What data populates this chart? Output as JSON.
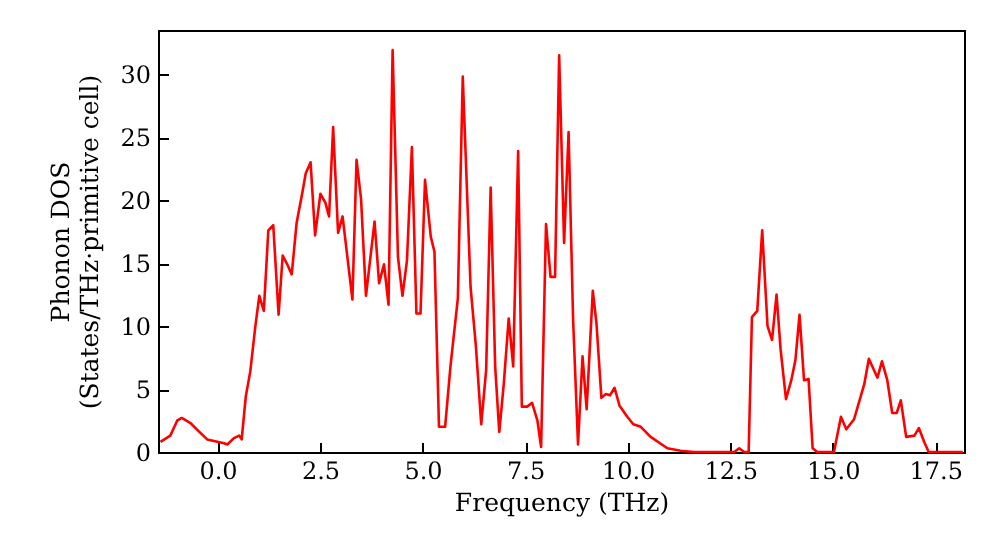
{
  "chart_data": {
    "type": "line",
    "xlabel": "Frequency (THz)",
    "ylabel": "Phonon DOS\n(States/THz·primitive cell)",
    "x": [
      -1.39,
      -1.15,
      -0.98,
      -0.87,
      -0.66,
      -0.41,
      -0.25,
      0.16,
      0.24,
      0.4,
      0.53,
      0.59,
      0.69,
      0.8,
      0.92,
      1.02,
      1.13,
      1.24,
      1.36,
      1.49,
      1.59,
      1.7,
      1.81,
      1.93,
      2.07,
      2.15,
      2.27,
      2.38,
      2.51,
      2.63,
      2.72,
      2.82,
      2.94,
      3.05,
      3.29,
      3.39,
      3.5,
      3.62,
      3.83,
      3.94,
      4.06,
      4.17,
      4.27,
      4.4,
      4.51,
      4.62,
      4.74,
      4.85,
      4.95,
      5.06,
      5.2,
      5.29,
      5.4,
      5.55,
      5.68,
      5.86,
      5.98,
      6.17,
      6.3,
      6.43,
      6.55,
      6.66,
      6.77,
      6.87,
      6.98,
      7.1,
      7.21,
      7.33,
      7.42,
      7.55,
      7.67,
      7.8,
      7.89,
      8.01,
      8.12,
      8.23,
      8.33,
      8.45,
      8.56,
      8.67,
      8.79,
      8.9,
      9.0,
      9.15,
      9.24,
      9.36,
      9.47,
      9.57,
      9.68,
      9.8,
      9.99,
      10.14,
      10.32,
      10.56,
      10.97,
      11.29,
      11.62,
      12.6,
      12.72,
      12.84,
      12.95,
      13.03,
      13.16,
      13.28,
      13.41,
      13.52,
      13.63,
      13.73,
      13.86,
      13.99,
      14.09,
      14.19,
      14.3,
      14.41,
      14.51,
      14.62,
      15.03,
      15.2,
      15.33,
      15.52,
      15.68,
      15.77,
      15.88,
      16.09,
      16.2,
      16.33,
      16.45,
      16.56,
      16.66,
      16.79,
      16.99,
      17.1,
      17.23,
      17.34,
      18.17
    ],
    "series": [
      {
        "color": "#ff0000",
        "values": [
          0.8,
          1.3,
          2.5,
          2.7,
          2.3,
          1.5,
          1.0,
          0.7,
          0.6,
          1.1,
          1.3,
          1.0,
          4.4,
          6.4,
          9.9,
          12.4,
          11.2,
          17.6,
          18.0,
          10.9,
          15.6,
          14.9,
          14.1,
          18.2,
          20.6,
          22.1,
          23.0,
          17.2,
          20.5,
          19.8,
          18.7,
          25.8,
          17.4,
          18.7,
          12.1,
          23.2,
          20.1,
          12.4,
          18.3,
          13.4,
          14.9,
          11.7,
          31.9,
          15.5,
          12.4,
          15.2,
          24.2,
          11.0,
          11.0,
          21.6,
          17.1,
          15.9,
          2.0,
          2.0,
          6.8,
          12.2,
          29.8,
          13.1,
          8.4,
          2.2,
          6.5,
          21.0,
          6.8,
          1.6,
          5.4,
          10.6,
          6.8,
          23.9,
          3.6,
          3.6,
          3.9,
          2.5,
          0.4,
          18.1,
          13.9,
          13.9,
          31.5,
          16.6,
          25.4,
          10.5,
          0.6,
          7.6,
          3.4,
          12.8,
          10.2,
          4.3,
          4.6,
          4.5,
          5.1,
          3.7,
          2.8,
          2.2,
          2.0,
          1.2,
          0.3,
          0.1,
          0,
          0,
          0.3,
          0,
          0,
          10.7,
          11.2,
          17.6,
          10.0,
          8.9,
          12.5,
          8.1,
          4.2,
          5.7,
          7.3,
          10.9,
          5.7,
          5.8,
          0.3,
          0,
          0,
          2.8,
          1.8,
          2.6,
          4.4,
          5.4,
          7.4,
          5.9,
          7.2,
          5.7,
          3.1,
          3.1,
          4.1,
          1.2,
          1.3,
          1.9,
          0.8,
          0,
          0
        ]
      }
    ],
    "xlim": [
      -1.45,
      18.2
    ],
    "ylim": [
      0,
      33.5
    ],
    "xticks": [
      {
        "value": 0,
        "label": "0.0"
      },
      {
        "value": 2.5,
        "label": "2.5"
      },
      {
        "value": 5,
        "label": "5.0"
      },
      {
        "value": 7.5,
        "label": "7.5"
      },
      {
        "value": 10,
        "label": "10.0"
      },
      {
        "value": 12.5,
        "label": "12.5"
      },
      {
        "value": 15,
        "label": "15.0"
      },
      {
        "value": 17.5,
        "label": "17.5"
      }
    ],
    "yticks": [
      0,
      5,
      10,
      15,
      20,
      25,
      30
    ],
    "grid": false,
    "line_style": "solid",
    "marker": "none"
  }
}
